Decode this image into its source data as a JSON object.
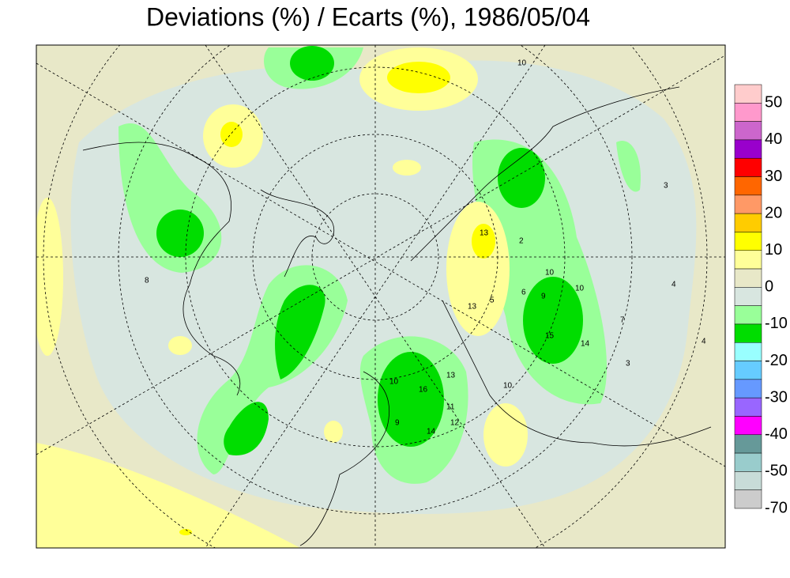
{
  "title": "Deviations (%) / Ecarts (%), 1986/05/04",
  "colorbar": {
    "colors": [
      "#ffcccc",
      "#ff99cc",
      "#cc66cc",
      "#9900cc",
      "#ff0000",
      "#ff6600",
      "#ff9966",
      "#ffcc00",
      "#ffff00",
      "#ffff99",
      "#e8e8c8",
      "#d8e6e0",
      "#99ff99",
      "#00dd00",
      "#99ffff",
      "#66ccff",
      "#6699ff",
      "#9966ff",
      "#ff00ff",
      "#669999",
      "#99cccc",
      "#c8dcd8",
      "#cccccc"
    ],
    "ticks": [
      50,
      40,
      30,
      20,
      10,
      0,
      -10,
      -20,
      -30,
      -40,
      -50,
      -70
    ]
  },
  "station_labels": [
    "10",
    "9",
    "15",
    "14",
    "10",
    "6",
    "13",
    "2",
    "5",
    "13",
    "10",
    "12",
    "14",
    "9",
    "11",
    "10",
    "16",
    "13",
    "4",
    "3",
    "8",
    "7",
    "3",
    "4",
    "10"
  ]
}
